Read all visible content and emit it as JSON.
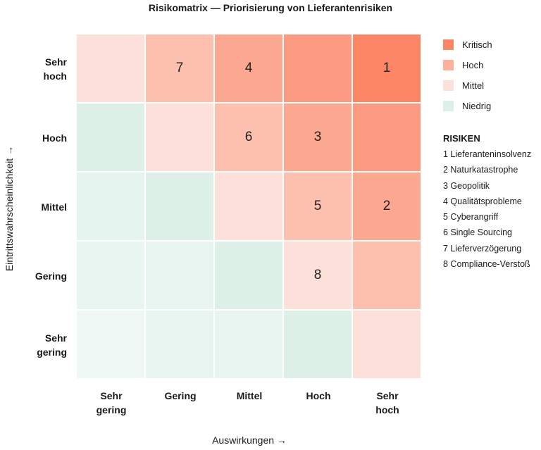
{
  "chart_data": {
    "type": "heatmap",
    "title": "Risikomatrix — Priorisierung von Lieferantenrisiken",
    "xlabel": "Auswirkungen →",
    "ylabel": "Eintrittswahrscheinlichkeit →",
    "x_categories": [
      "Sehr gering",
      "Gering",
      "Mittel",
      "Hoch",
      "Sehr hoch"
    ],
    "y_categories": [
      "Sehr hoch",
      "Hoch",
      "Mittel",
      "Gering",
      "Sehr gering"
    ],
    "cell_colors": [
      [
        "#fde0d9",
        "#fdbfae",
        "#fca891",
        "#fc9b81",
        "#fb8565"
      ],
      [
        "#dcf0e8",
        "#fde0d9",
        "#fdbfae",
        "#fca891",
        "#fb9a80"
      ],
      [
        "#e5f4ee",
        "#dcf0e8",
        "#fde0d9",
        "#fdbfae",
        "#fca891"
      ],
      [
        "#e8f5f0",
        "#e8f5f0",
        "#dcf0e8",
        "#fde0d9",
        "#fdbfae"
      ],
      [
        "#f0f8f5",
        "#e8f5f0",
        "#e8f5f0",
        "#dcf0e8",
        "#fde0d9"
      ]
    ],
    "cell_labels": [
      [
        "",
        "7",
        "4",
        "",
        "1"
      ],
      [
        "",
        "",
        "6",
        "3",
        ""
      ],
      [
        "",
        "",
        "",
        "5",
        "2"
      ],
      [
        "",
        "",
        "",
        "8",
        ""
      ],
      [
        "",
        "",
        "",
        "",
        ""
      ]
    ],
    "legend": {
      "placement": "right",
      "items": [
        {
          "label": "Kritisch",
          "color": "#fb8565"
        },
        {
          "label": "Hoch",
          "color": "#fdb19c"
        },
        {
          "label": "Mittel",
          "color": "#fde0d9"
        },
        {
          "label": "Niedrig",
          "color": "#dcf0e8"
        }
      ]
    },
    "risks": {
      "title": "RISIKEN",
      "items": [
        "1 Lieferanteninsolvenz",
        "2 Naturkatastrophe",
        "3 Geopolitik",
        "4 Qualitätsprobleme",
        "5 Cyberangriff",
        "6 Single Sourcing",
        "7 Lieferverzögerung",
        "8 Compliance-Verstoß"
      ]
    }
  }
}
